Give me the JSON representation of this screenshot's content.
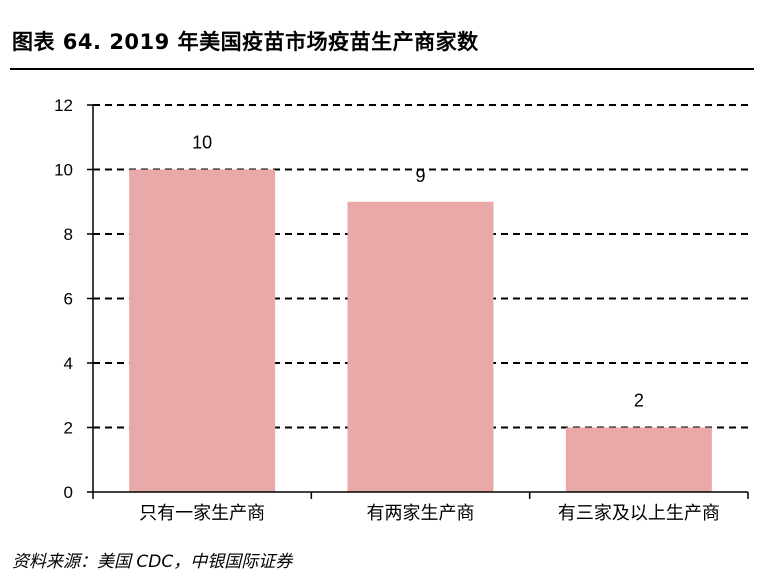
{
  "figure_title": "图表 64. 2019 年美国疫苗市场疫苗生产商家数",
  "source_note": "资料来源：美国 CDC，中银国际证券",
  "colors": {
    "bar": "#e9a9a9",
    "grid": "#000000",
    "axis": "#000000",
    "text": "#000000"
  },
  "chart_data": {
    "type": "bar",
    "title": "",
    "xlabel": "",
    "ylabel": "",
    "categories": [
      "只有一家生产商",
      "有两家生产商",
      "有三家及以上生产商"
    ],
    "values": [
      10,
      9,
      2
    ],
    "data_labels": [
      "10",
      "9",
      "2"
    ],
    "ylim": [
      0,
      12
    ],
    "yticks": [
      0,
      2,
      4,
      6,
      8,
      10,
      12
    ],
    "ytick_labels": [
      "0",
      "2",
      "4",
      "6",
      "8",
      "10",
      "12"
    ],
    "grid": "horizontal dashed",
    "legend": "none"
  }
}
